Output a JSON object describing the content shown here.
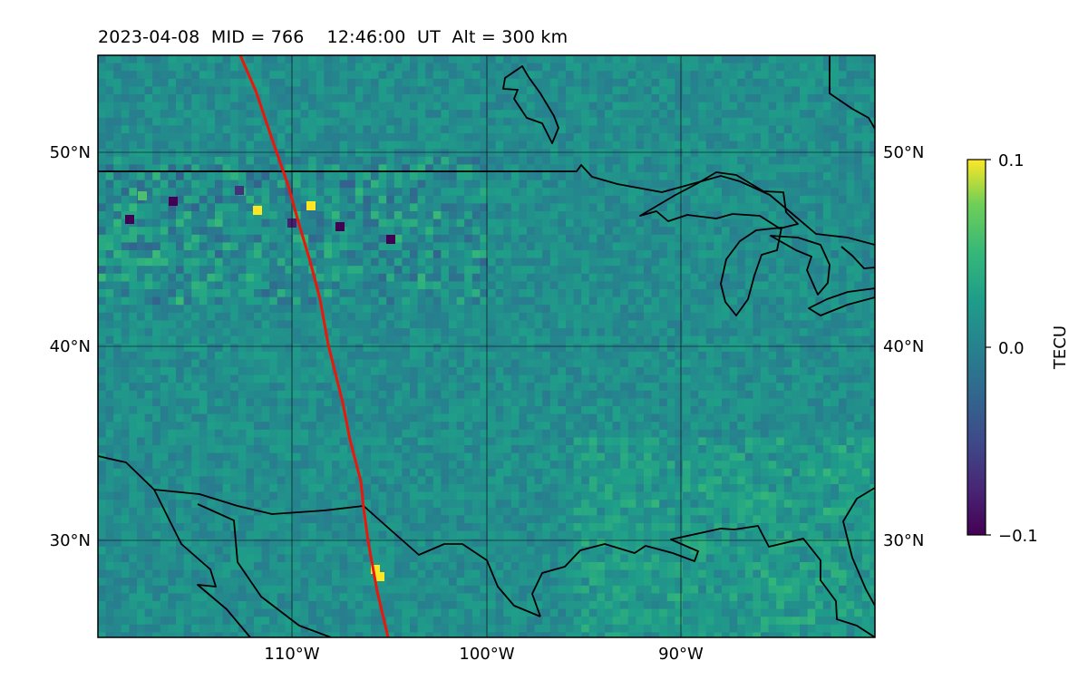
{
  "title": "2023-04-08  MID = 766    12:46:00  UT  Alt = 300 km",
  "map": {
    "lon_range": [
      -120,
      -80
    ],
    "lat_range": [
      25,
      55
    ],
    "lon_ticks": [
      {
        "value": -110,
        "label": "110°W"
      },
      {
        "value": -100,
        "label": "100°W"
      },
      {
        "value": -90,
        "label": "90°W"
      }
    ],
    "lat_ticks": [
      {
        "value": 30,
        "label": "30°N"
      },
      {
        "value": 40,
        "label": "40°N"
      },
      {
        "value": 50,
        "label": "50°N"
      }
    ],
    "colormap": "viridis",
    "track_color": "#e8180c",
    "coast_color": "#000000"
  },
  "colorbar": {
    "label": "TECU",
    "min": -0.1,
    "max": 0.1,
    "ticks": [
      {
        "value": 0.1,
        "label": "0.1"
      },
      {
        "value": 0.0,
        "label": "0.0"
      },
      {
        "value": -0.1,
        "label": "−0.1"
      }
    ]
  }
}
